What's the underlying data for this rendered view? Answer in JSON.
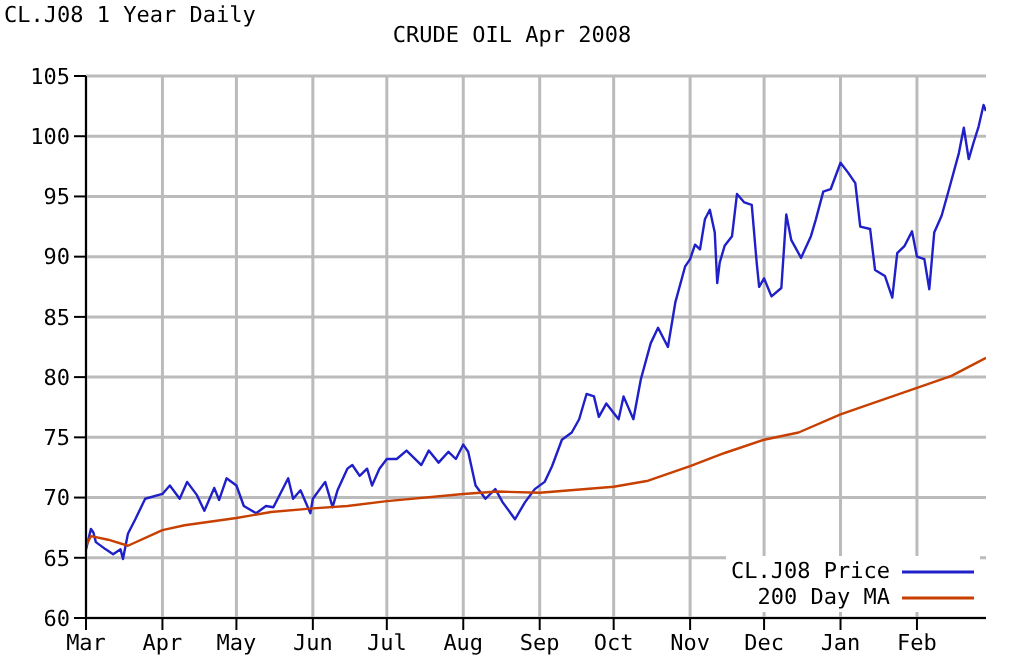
{
  "chart_data": {
    "type": "line",
    "title": "CRUDE OIL Apr 2008",
    "subtitle": "CL.J08 1 Year Daily",
    "xlim": [
      "2007-03-01",
      "2008-02-29"
    ],
    "xticks": [
      {
        "value": "2007-03-01",
        "label": "Mar"
      },
      {
        "value": "2007-04-01",
        "label": "Apr"
      },
      {
        "value": "2007-05-01",
        "label": "May"
      },
      {
        "value": "2007-06-01",
        "label": "Jun"
      },
      {
        "value": "2007-07-01",
        "label": "Jul"
      },
      {
        "value": "2007-08-01",
        "label": "Aug"
      },
      {
        "value": "2007-09-01",
        "label": "Sep"
      },
      {
        "value": "2007-10-01",
        "label": "Oct"
      },
      {
        "value": "2007-11-01",
        "label": "Nov"
      },
      {
        "value": "2007-12-01",
        "label": "Dec"
      },
      {
        "value": "2008-01-01",
        "label": "Jan"
      },
      {
        "value": "2008-02-01",
        "label": "Feb"
      }
    ],
    "ylim": [
      60,
      105
    ],
    "yticks": [
      60,
      65,
      70,
      75,
      80,
      85,
      90,
      95,
      100,
      105
    ],
    "grid": true,
    "legend": "bottom right",
    "marker": "none",
    "line_style": "solid",
    "series": [
      {
        "name": "CL.J08 Price",
        "color": "#2020c8",
        "x": [
          "2007-03-01",
          "2007-03-03",
          "2007-03-04",
          "2007-03-05",
          "2007-03-09",
          "2007-03-12",
          "2007-03-15",
          "2007-03-16",
          "2007-03-18",
          "2007-03-21",
          "2007-03-25",
          "2007-04-01",
          "2007-04-04",
          "2007-04-08",
          "2007-04-11",
          "2007-04-15",
          "2007-04-18",
          "2007-04-22",
          "2007-04-24",
          "2007-04-27",
          "2007-05-01",
          "2007-05-04",
          "2007-05-09",
          "2007-05-13",
          "2007-05-16",
          "2007-05-22",
          "2007-05-24",
          "2007-05-27",
          "2007-05-31",
          "2007-06-01",
          "2007-06-06",
          "2007-06-09",
          "2007-06-11",
          "2007-06-15",
          "2007-06-17",
          "2007-06-20",
          "2007-06-23",
          "2007-06-25",
          "2007-06-28",
          "2007-07-01",
          "2007-07-05",
          "2007-07-09",
          "2007-07-15",
          "2007-07-18",
          "2007-07-22",
          "2007-07-26",
          "2007-07-29",
          "2007-08-01",
          "2007-08-03",
          "2007-08-06",
          "2007-08-10",
          "2007-08-14",
          "2007-08-17",
          "2007-08-22",
          "2007-08-26",
          "2007-08-30",
          "2007-09-03",
          "2007-09-06",
          "2007-09-10",
          "2007-09-14",
          "2007-09-17",
          "2007-09-20",
          "2007-09-23",
          "2007-09-25",
          "2007-09-28",
          "2007-10-03",
          "2007-10-05",
          "2007-10-09",
          "2007-10-12",
          "2007-10-16",
          "2007-10-19",
          "2007-10-23",
          "2007-10-26",
          "2007-10-30",
          "2007-11-01",
          "2007-11-03",
          "2007-11-05",
          "2007-11-07",
          "2007-11-09",
          "2007-11-11",
          "2007-11-12",
          "2007-11-13",
          "2007-11-15",
          "2007-11-18",
          "2007-11-20",
          "2007-11-23",
          "2007-11-26",
          "2007-11-28",
          "2007-11-29",
          "2007-12-01",
          "2007-12-04",
          "2007-12-08",
          "2007-12-10",
          "2007-12-12",
          "2007-12-16",
          "2007-12-20",
          "2007-12-22",
          "2007-12-25",
          "2007-12-28",
          "2008-01-01",
          "2008-01-04",
          "2008-01-07",
          "2008-01-09",
          "2008-01-13",
          "2008-01-15",
          "2008-01-19",
          "2008-01-22",
          "2008-01-24",
          "2008-01-27",
          "2008-01-30",
          "2008-02-01",
          "2008-02-04",
          "2008-02-06",
          "2008-02-08",
          "2008-02-11",
          "2008-02-14",
          "2008-02-18",
          "2008-02-20",
          "2008-02-22",
          "2008-02-24",
          "2008-02-26",
          "2008-02-28",
          "2008-02-29"
        ],
        "values": [
          65.7,
          67.4,
          67.1,
          66.3,
          65.7,
          65.3,
          65.7,
          64.9,
          67,
          68.2,
          69.9,
          70.3,
          71,
          69.9,
          71.3,
          70.2,
          68.9,
          70.8,
          69.8,
          71.6,
          71,
          69.3,
          68.7,
          69.3,
          69.2,
          71.6,
          69.9,
          70.6,
          68.7,
          69.9,
          71.3,
          69.2,
          70.6,
          72.4,
          72.7,
          71.8,
          72.4,
          71,
          72.4,
          73.2,
          73.2,
          73.9,
          72.7,
          73.9,
          72.9,
          73.8,
          73.2,
          74.4,
          73.8,
          71,
          69.9,
          70.7,
          69.6,
          68.2,
          69.6,
          70.7,
          71.3,
          72.6,
          74.8,
          75.4,
          76.5,
          78.6,
          78.4,
          76.7,
          77.8,
          76.5,
          78.4,
          76.5,
          79.8,
          82.8,
          84.1,
          82.5,
          86.2,
          89.2,
          89.8,
          91,
          90.6,
          93.1,
          93.9,
          92,
          87.8,
          89.5,
          90.9,
          91.7,
          95.2,
          94.5,
          94.3,
          89.5,
          87.5,
          88.2,
          86.7,
          87.4,
          93.5,
          91.4,
          89.9,
          91.7,
          93.1,
          95.4,
          95.6,
          97.8,
          97,
          96.1,
          92.5,
          92.3,
          88.9,
          88.4,
          86.6,
          90.3,
          90.9,
          92.1,
          90,
          89.8,
          87.3,
          92,
          93.4,
          95.6,
          98.6,
          100.7,
          98.1,
          99.5,
          100.8,
          102.6,
          102.1
        ]
      },
      {
        "name": "200 Day MA",
        "color": "#c84000",
        "x": [
          "2007-03-01",
          "2007-03-03",
          "2007-03-10",
          "2007-03-18",
          "2007-04-01",
          "2007-04-10",
          "2007-05-01",
          "2007-05-15",
          "2007-06-01",
          "2007-06-15",
          "2007-07-01",
          "2007-08-01",
          "2007-08-15",
          "2007-09-01",
          "2007-10-01",
          "2007-10-15",
          "2007-11-01",
          "2007-11-15",
          "2007-12-01",
          "2007-12-15",
          "2008-01-01",
          "2008-01-15",
          "2008-02-01",
          "2008-02-15",
          "2008-02-29"
        ],
        "values": [
          66,
          66.8,
          66.5,
          66,
          67.3,
          67.7,
          68.3,
          68.8,
          69.1,
          69.3,
          69.7,
          70.3,
          70.5,
          70.4,
          70.9,
          71.4,
          72.6,
          73.7,
          74.8,
          75.4,
          76.9,
          77.9,
          79.1,
          80.1,
          81.6
        ]
      }
    ]
  }
}
